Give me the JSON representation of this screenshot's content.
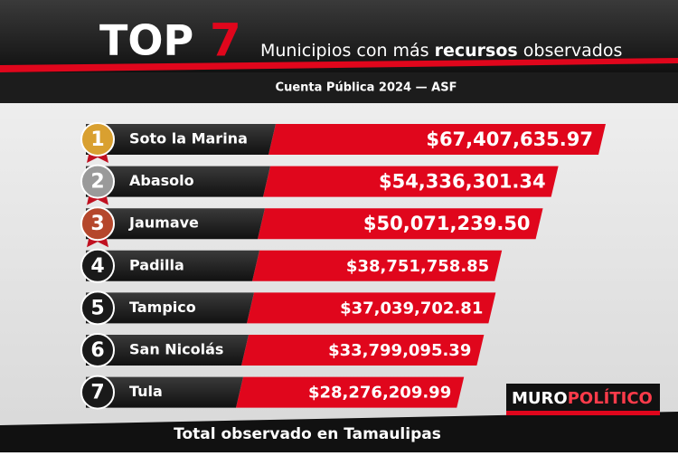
{
  "chart_data": {
    "type": "bar",
    "title_top": "TOP",
    "title_number": "7",
    "title_parts": [
      "Municipios con más",
      "recursos",
      "observados"
    ],
    "subtitle": "Cuenta Pública 2024 — ASF",
    "ranks": [
      "1",
      "2",
      "3",
      "4",
      "5",
      "6",
      "7"
    ],
    "rank_colors": [
      "#d9a030",
      "#9a9a9a",
      "#b5472c",
      "#1a1a1a",
      "#1a1a1a",
      "#1a1a1a",
      "#1a1a1a"
    ],
    "categories": [
      "Soto la Marina",
      "Abasolo",
      "Jaumave",
      "Padilla",
      "Tampico",
      "San Nicolás",
      "Tula"
    ],
    "values": [
      67407635.97,
      54336301.34,
      50071239.5,
      38751758.85,
      37039702.81,
      33799095.39,
      28276209.99
    ],
    "value_labels": [
      "$67,407,635.97",
      "$54,336,301.34",
      "$50,071,239.50",
      "$38,751,758.85",
      "$37,039,702.81",
      "$33,799,095.39",
      "$28,276,209.99"
    ],
    "color": "#e0061c",
    "footer": "Total observado en Tamaulipas",
    "logo": [
      "MURO",
      "POLÍTICO"
    ]
  }
}
